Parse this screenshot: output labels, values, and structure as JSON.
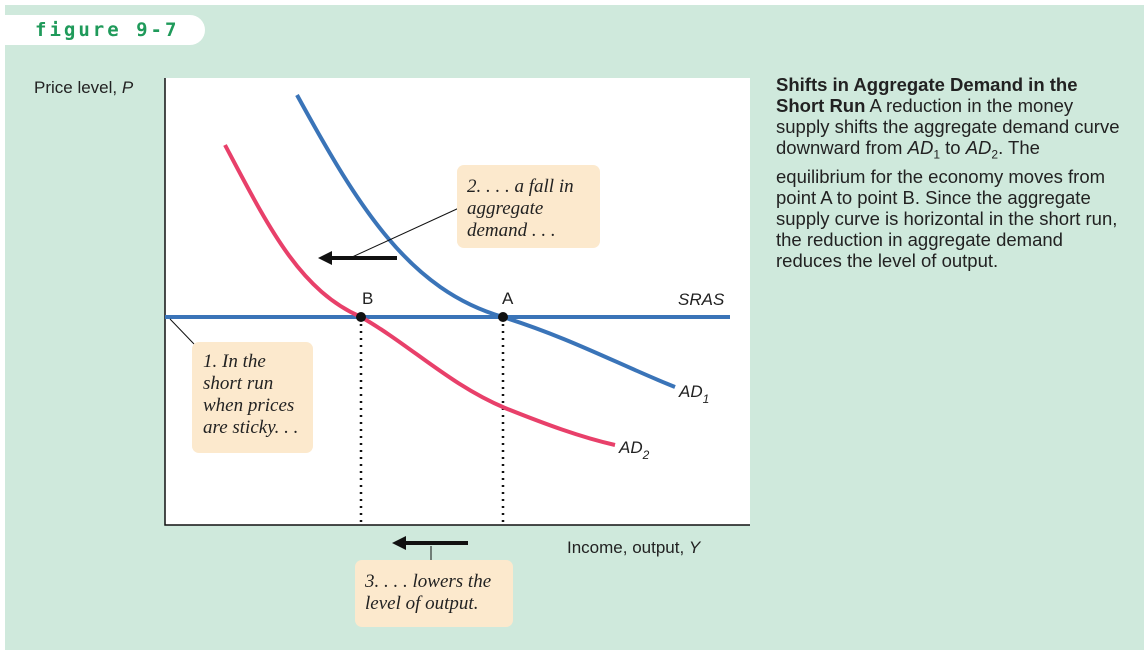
{
  "figure_label": "figure 9-7",
  "y_axis_label": {
    "text": "Price level, ",
    "var": "P"
  },
  "x_axis_label": {
    "text": "Income, output, ",
    "var": "Y"
  },
  "curves": {
    "sras": "SRAS",
    "ad1": {
      "name": "AD",
      "sub": "1"
    },
    "ad2": {
      "name": "AD",
      "sub": "2"
    }
  },
  "points": [
    "B",
    "A"
  ],
  "annotations": [
    {
      "lines": [
        "2. . . . a fall in",
        "aggregate",
        "demand . . ."
      ]
    },
    {
      "lines": [
        "1. In the",
        "short run",
        "when prices",
        "are sticky. . ."
      ]
    },
    {
      "lines": [
        "3. . . . lowers the",
        "level of output."
      ]
    }
  ],
  "caption": {
    "title": "Shifts in Aggregate Demand in the Short Run",
    "body": [
      {
        "text": " A reduction in the money supply shifts the aggregate demand curve downward from "
      },
      {
        "var": "AD",
        "sub": "1"
      },
      {
        "text": " to "
      },
      {
        "var": "AD",
        "sub": "2"
      },
      {
        "text": ". The equilibrium for the economy moves from point A to point B. Since the aggregate supply curve is horizontal in the short run, the reduction in aggregate demand reduces the level of output."
      }
    ]
  }
}
